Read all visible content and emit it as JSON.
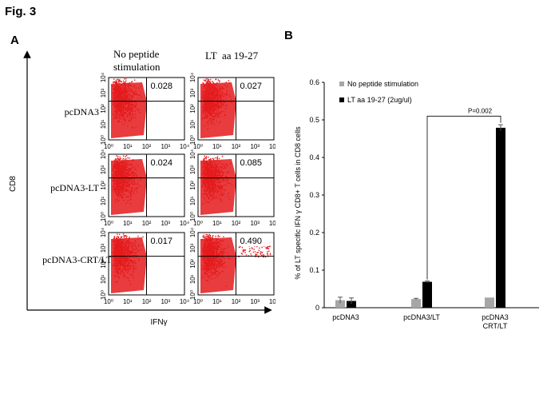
{
  "figure": {
    "title": "Fig. 3"
  },
  "panel_a": {
    "letter": "A",
    "columns": [
      "No peptide stimulation",
      "LT  aa 19-27"
    ],
    "col1_line1": "No peptide",
    "col1_line2": "stimulation",
    "rows": [
      "pcDNA3",
      "pcDNA3-LT",
      "pcDNA3-CRT/LT"
    ],
    "y_axis": "CD8",
    "x_axis": "IFNγ",
    "tick_labels": [
      "10⁰",
      "10¹",
      "10²",
      "10³",
      "10⁴"
    ],
    "quadrant_values": [
      [
        "0.028",
        "0.027"
      ],
      [
        "0.024",
        "0.085"
      ],
      [
        "0.017",
        "0.490"
      ]
    ]
  },
  "panel_b": {
    "letter": "B"
  },
  "colors": {
    "dots": "#e41a1c",
    "bar_gray": "#a6a6a6",
    "bar_black": "#000000"
  },
  "chart_data": {
    "type": "bar",
    "ylabel": "% of LT specific IFN γ CD8+ T cells in CD8 cells",
    "ylim": [
      0,
      0.6
    ],
    "yticks": [
      "0",
      "0.1",
      "0.2",
      "0.3",
      "0.4",
      "0.5",
      "0.6"
    ],
    "categories": [
      "pcDNA3",
      "pcDNA3/LT",
      "pcDNA3 CRT/LT"
    ],
    "category_lines": [
      [
        "pcDNA3"
      ],
      [
        "pcDNA3/LT"
      ],
      [
        "pcDNA3",
        "CRT/LT"
      ]
    ],
    "series": [
      {
        "name": "No peptide stimulation",
        "color": "#a6a6a6",
        "values": [
          0.02,
          0.023,
          0.027
        ],
        "errors": [
          0.008,
          0.002,
          0.0
        ]
      },
      {
        "name": "LT aa 19-27 (2ug/ul)",
        "color": "#000000",
        "values": [
          0.018,
          0.069,
          0.479
        ],
        "errors": [
          0.008,
          0.002,
          0.008
        ]
      }
    ],
    "annotation": "P=0.002"
  }
}
